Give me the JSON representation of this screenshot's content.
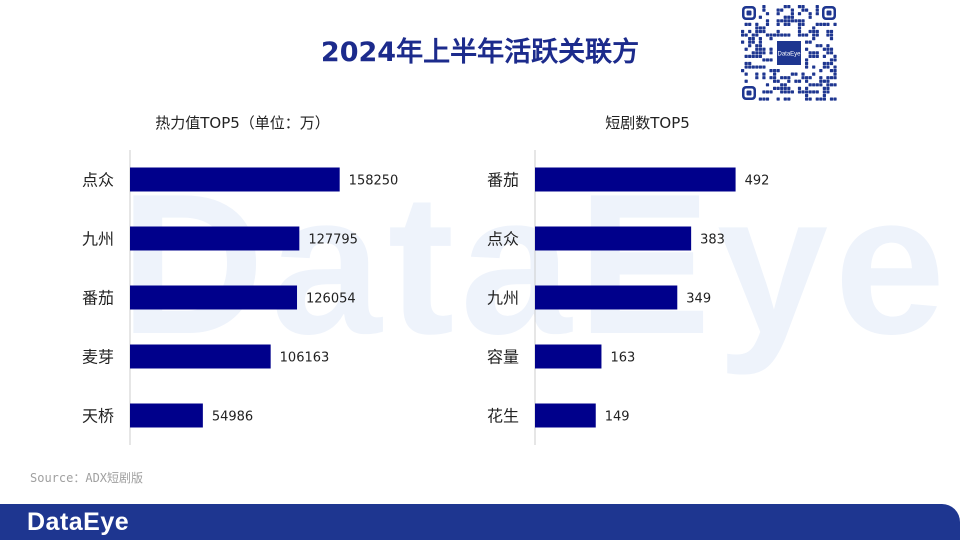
{
  "title": "2024年上半年活跃关联方",
  "watermark": "DataEye",
  "source": "Source：ADX短剧版",
  "footer_logo": "DataEye",
  "qr_center_label": "DataEye",
  "colors": {
    "bar": "#00008b",
    "title": "#1c2b8c",
    "footer": "#1e3690"
  },
  "chart_data": [
    {
      "type": "bar",
      "orientation": "horizontal",
      "title": "热力值TOP5（单位：万）",
      "categories": [
        "点众",
        "九州",
        "番茄",
        "麦芽",
        "天桥"
      ],
      "values": [
        158250,
        127795,
        126054,
        106163,
        54986
      ],
      "xlim": [
        0,
        200000
      ]
    },
    {
      "type": "bar",
      "orientation": "horizontal",
      "title": "短剧数TOP5",
      "categories": [
        "番茄",
        "点众",
        "九州",
        "容量",
        "花生"
      ],
      "values": [
        492,
        383,
        349,
        163,
        149
      ],
      "xlim": [
        0,
        650
      ]
    }
  ]
}
